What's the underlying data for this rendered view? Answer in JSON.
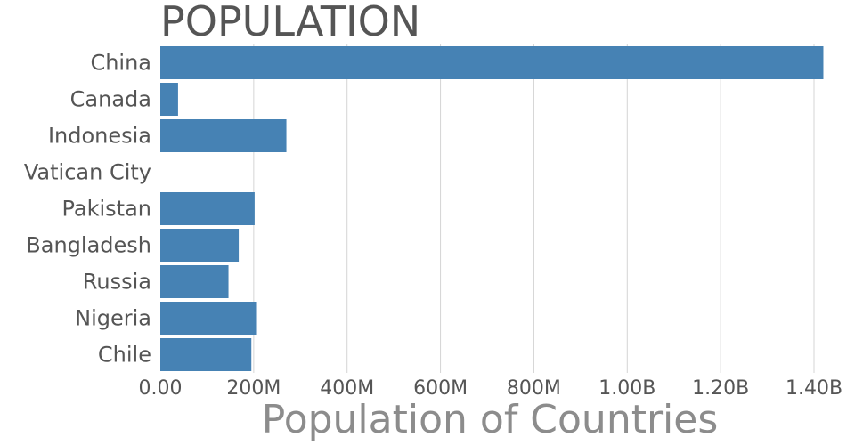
{
  "chart_data": {
    "type": "bar",
    "orientation": "horizontal",
    "title": "POPULATION",
    "xlabel": "Population of Countries",
    "ylabel": "",
    "categories": [
      "China",
      "Canada",
      "Indonesia",
      "Vatican City",
      "Pakistan",
      "Bangladesh",
      "Russia",
      "Nigeria",
      "Chile"
    ],
    "values": [
      1420000000,
      38000000,
      270000000,
      800,
      202000000,
      168000000,
      146000000,
      207000000,
      195000000
    ],
    "xlim": [
      0,
      1400000000
    ],
    "xticks": [
      0,
      200000000,
      400000000,
      600000000,
      800000000,
      1000000000,
      1200000000,
      1400000000
    ],
    "xtick_labels": [
      "0.00",
      "200M",
      "400M",
      "600M",
      "800M",
      "1.00B",
      "1.20B",
      "1.40B"
    ],
    "grid": "vertical",
    "legend": "none",
    "bar_color": "#4682b4"
  }
}
